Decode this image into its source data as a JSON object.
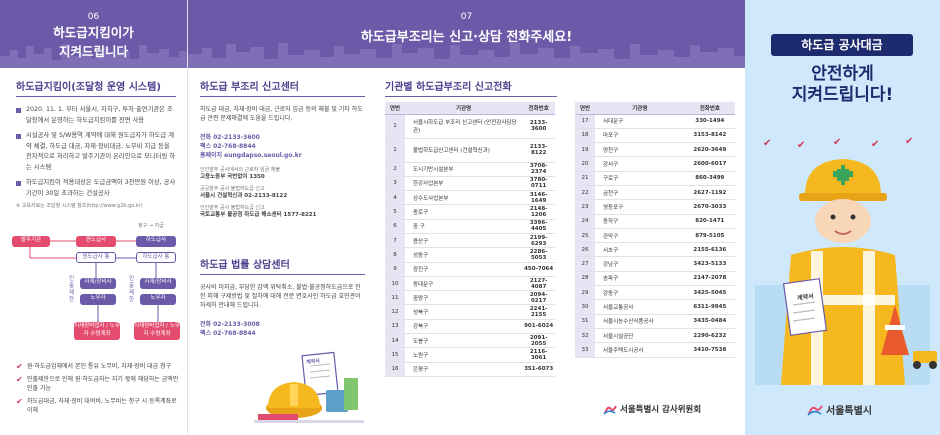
{
  "panel1": {
    "num": "06",
    "title_line1": "하도급지킴이가",
    "title_line2": "지켜드립니다",
    "section_title": "하도급지킴이(조달청 운영 시스템)",
    "bullets": [
      "2020. 11. 1. 부터 서울시, 자치구, 투자·출연기관은 조달청에서 운영하는 하도급지킴이를 전면 사용",
      "시설공사 및 S/W용역 계약에 대해 원도급자가 하도급 계약 체결, 하도급 대금, 자재·장비대금, 노무비 지급 등을 전자적으로 처리하고 발주기관이 온라인으로 모니터링 하는 시스템",
      "하도급지킴이 적용대상은 도급금액이 3천만원 이상, 공사기간이 30일 초과하는 건설공사"
    ],
    "note": "※ 교육자료는 조달청 시스템 참조(http://www.g2b.go.kr)",
    "flow": {
      "legend": "청구 → 지급",
      "client": "발주기관",
      "prime": "원도급사",
      "prime_account": "원도급사 통",
      "sub": "하도급사",
      "sub_account": "하도급사 통",
      "supplier": "자재/장비사",
      "labor": "노무자",
      "side1": "인출제한",
      "side2": "인출제한",
      "bottom1": "지재장비업자 / 노무자 수령계좌",
      "bottom2": "지재장비업자 / 노무자 수령계좌"
    },
    "checks": [
      "원·하도급업체에서 본인 통유 노무비, 자재·장비 대금 청구",
      "인출제한으로 인해 원·하도급자는 지기 몫에 해당하는 금액만 인출 가능",
      "하도급대금, 자재·장비 대여비, 노무비는 청구 시 등록계좌로 이체"
    ]
  },
  "panel2": {
    "section1_title": "하도급 부조리 신고센터",
    "section1_body": "하도급 대금, 자재·장비 대금, 근로자 임금 등의 체불 및 기타 하도급 관련 문제해결에 도움을 드립니다.",
    "contact": {
      "phone": "전화 02-2133-3600",
      "fax": "팩스 02-768-8844",
      "homepage": "홈페이지 eungdapso.seoul.go.kr"
    },
    "centers": [
      {
        "label": "인인발주 공사에서의 근로자 임금 체불",
        "name": "고용노동부 국번없이 1350"
      },
      {
        "label": "공공발주 공사 불법하도급 신고",
        "name": "서울시 건설혁신과 02-2133-8122"
      },
      {
        "label": "인인발주 공사 불법하도급 신고",
        "name": "국토교통부 불공정 하도급 해소센터 1577-8221"
      }
    ],
    "section2_title": "하도급 법률 상담센터",
    "section2_body": "공사비 미지급, 부당한 감액 위탁취소, 불법·불공정하도급으로 인한 피해 구제방법 및 절차에 대해 전문 변호사인 하도급 호민관이 자세히 안내해 드립니다.",
    "contact2": {
      "phone": "전화 02-2133-3008",
      "fax": "팩스 02-768-8844"
    },
    "contract_label": "계약서"
  },
  "panel3": {
    "num": "07",
    "title": "하도급부조리는 신고·상담 전화주세요!",
    "table_title": "기관별 하도급부조리 신고전화",
    "headers": [
      "연번",
      "기관명",
      "전화번호"
    ],
    "rows_left": [
      [
        "1",
        "서울시하도급 부조리 신고센터 (안전감사담당관)",
        "2133-3600"
      ],
      [
        "1",
        "불법하도급신고센터 (건설혁신과)",
        "2133-8122"
      ],
      [
        "2",
        "도시기반시설본부",
        "3708-2374"
      ],
      [
        "3",
        "한강사업본부",
        "3780-0711"
      ],
      [
        "4",
        "상수도사업본부",
        "3146-1649"
      ],
      [
        "5",
        "종로구",
        "2148-1206"
      ],
      [
        "6",
        "중 구",
        "3396-4405"
      ],
      [
        "7",
        "용산구",
        "2199-6293"
      ],
      [
        "8",
        "성동구",
        "2286-5053"
      ],
      [
        "9",
        "광진구",
        "450-7064"
      ],
      [
        "10",
        "동대문구",
        "2127-4087"
      ],
      [
        "11",
        "중랑구",
        "2094-0217"
      ],
      [
        "12",
        "성북구",
        "2241-2155"
      ],
      [
        "13",
        "강북구",
        "901-6024"
      ],
      [
        "14",
        "도봉구",
        "2091-2055"
      ],
      [
        "15",
        "노원구",
        "2116-3061"
      ],
      [
        "16",
        "은평구",
        "351-6073"
      ]
    ],
    "rows_right": [
      [
        "17",
        "서대문구",
        "330-1494"
      ],
      [
        "18",
        "마포구",
        "3153-8142"
      ],
      [
        "19",
        "양천구",
        "2620-3649"
      ],
      [
        "20",
        "강서구",
        "2600-6017"
      ],
      [
        "21",
        "구로구",
        "860-3499"
      ],
      [
        "22",
        "금천구",
        "2627-1192"
      ],
      [
        "23",
        "영등포구",
        "2670-3033"
      ],
      [
        "24",
        "동작구",
        "820-1471"
      ],
      [
        "25",
        "관악구",
        "879-5105"
      ],
      [
        "26",
        "서초구",
        "2155-6136"
      ],
      [
        "27",
        "강남구",
        "3423-5133"
      ],
      [
        "28",
        "송파구",
        "2147-2078"
      ],
      [
        "29",
        "강동구",
        "3425-5045"
      ],
      [
        "30",
        "서울교통공사",
        "6311-9945"
      ],
      [
        "31",
        "서울시농수산식품공사",
        "3435-0484"
      ],
      [
        "32",
        "서울시설공단",
        "2290-6232"
      ],
      [
        "33",
        "서울주택도시공사",
        "3410-7538"
      ]
    ],
    "logo_text": "서울특별시 감사위원회"
  },
  "panel4": {
    "badge": "하도급 공사대금",
    "headline1": "안전하게",
    "headline2": "지켜드립니다!",
    "contract_label": "계약서",
    "logo_text": "서울특별시"
  }
}
